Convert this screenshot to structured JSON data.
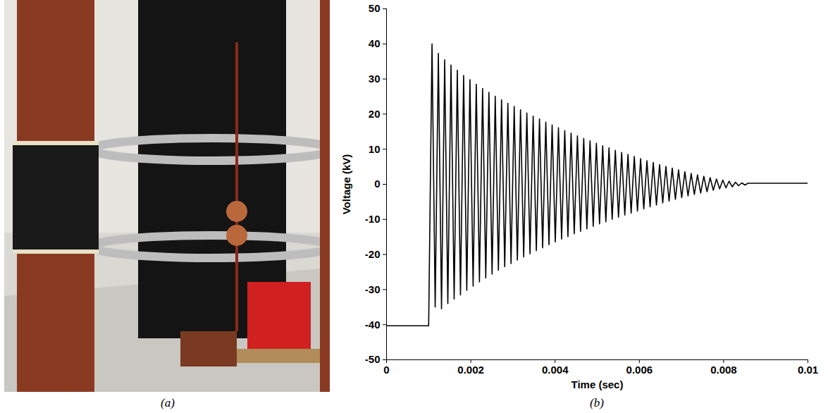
{
  "photo": {
    "caption": "(a)"
  },
  "chart_data": {
    "type": "line",
    "caption": "(b)",
    "x_label": "Time (sec)",
    "y_label": "Voltage (kV)",
    "xlim": [
      0,
      0.01
    ],
    "xticks": [
      0,
      0.002,
      0.004,
      0.006,
      0.008,
      0.01
    ],
    "ylim": [
      -50,
      50
    ],
    "yticks": [
      -50,
      -40,
      -30,
      -20,
      -10,
      0,
      10,
      20,
      30,
      40,
      50
    ],
    "grid": false,
    "series": [
      {
        "color": "#000000",
        "x": [
          0,
          0.001,
          0.00108,
          0.001155,
          0.00123,
          0.001305,
          0.00138,
          0.001455,
          0.00153,
          0.001605,
          0.00168,
          0.001755,
          0.00183,
          0.001905,
          0.00198,
          0.002055,
          0.00213,
          0.002205,
          0.00228,
          0.002355,
          0.00243,
          0.002505,
          0.00258,
          0.002655,
          0.00273,
          0.002805,
          0.00288,
          0.002955,
          0.00303,
          0.003105,
          0.00318,
          0.003255,
          0.00333,
          0.003405,
          0.00348,
          0.003555,
          0.00363,
          0.003705,
          0.00378,
          0.003855,
          0.00393,
          0.004005,
          0.00408,
          0.004155,
          0.00423,
          0.004305,
          0.00438,
          0.004455,
          0.00453,
          0.004605,
          0.00468,
          0.004755,
          0.00483,
          0.004905,
          0.00498,
          0.005055,
          0.00513,
          0.005205,
          0.00528,
          0.005355,
          0.00543,
          0.005505,
          0.00558,
          0.005655,
          0.00573,
          0.005805,
          0.00588,
          0.005955,
          0.00603,
          0.006105,
          0.00618,
          0.006255,
          0.00633,
          0.006405,
          0.00648,
          0.006555,
          0.00663,
          0.006705,
          0.00678,
          0.006855,
          0.00693,
          0.007005,
          0.00708,
          0.007155,
          0.00723,
          0.007305,
          0.00738,
          0.007455,
          0.00753,
          0.007605,
          0.00768,
          0.007755,
          0.00783,
          0.007905,
          0.00798,
          0.008055,
          0.00813,
          0.008205,
          0.00828,
          0.008355,
          0.00843,
          0.008505,
          0.00858,
          0.01
        ],
        "values": [
          -40.3,
          -40.3,
          40,
          -35,
          37.3,
          -35.5,
          35.5,
          -34,
          34,
          -32.7,
          32.5,
          -31.5,
          31,
          -30.2,
          29.8,
          -29,
          28.5,
          -27.8,
          27.3,
          -26.7,
          26.2,
          -25.6,
          25.1,
          -24.5,
          24.1,
          -23.5,
          23.1,
          -22.6,
          22.2,
          -21.6,
          21.2,
          -20.7,
          20.3,
          -19.8,
          19.4,
          -18.9,
          18.6,
          -18.1,
          17.7,
          -17.2,
          16.9,
          -16.4,
          16.1,
          -15.6,
          15.3,
          -14.9,
          14.6,
          -14.1,
          13.8,
          -13.4,
          13.1,
          -12.7,
          12.4,
          -12,
          11.7,
          -11.3,
          11,
          -10.7,
          10.4,
          -10,
          9.7,
          -9.4,
          9.1,
          -8.8,
          8.5,
          -8.2,
          7.9,
          -7.6,
          7.3,
          -7,
          6.7,
          -6.4,
          6.2,
          -5.9,
          5.6,
          -5.3,
          5.1,
          -4.8,
          4.6,
          -4.3,
          4.1,
          -3.8,
          3.6,
          -3.3,
          3.1,
          -2.9,
          2.7,
          -2.5,
          2.3,
          -2.1,
          1.9,
          -1.7,
          1.5,
          -1.3,
          1.2,
          -1,
          0.9,
          -0.7,
          0.6,
          -0.4,
          0.4,
          -0.2,
          0.3,
          0.3
        ]
      }
    ]
  }
}
